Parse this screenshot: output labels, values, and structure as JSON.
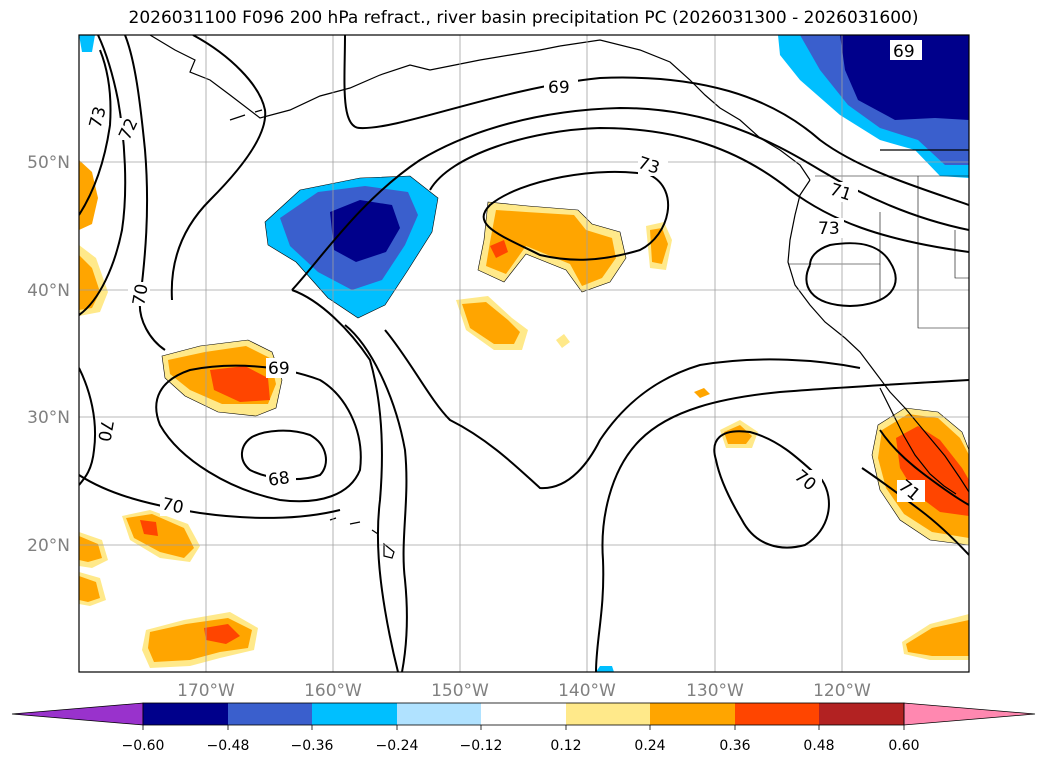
{
  "title": "2026031100 F096 200 hPa refract., river basin precipitation PC (2026031300 - 2026031600)",
  "map": {
    "lon_labels": [
      "170°W",
      "160°W",
      "150°W",
      "140°W",
      "130°W",
      "120°W"
    ],
    "lat_labels": [
      "50°N",
      "40°N",
      "30°N",
      "20°N"
    ],
    "contour_labels": [
      "69",
      "69",
      "73",
      "72",
      "70",
      "73",
      "71",
      "73",
      "69",
      "68",
      "70",
      "70",
      "70",
      "71"
    ],
    "colors": {
      "land_outline": "#000000",
      "grid": "#a0a0a0",
      "axis_label": "#808080"
    }
  },
  "colorbar": {
    "tick_labels": [
      "−0.60",
      "−0.48",
      "−0.36",
      "−0.24",
      "−0.12",
      "0.12",
      "0.24",
      "0.36",
      "0.48",
      "0.60"
    ],
    "colors": [
      "#9932cc",
      "#00008b",
      "#3a5fcd",
      "#00bfff",
      "#b0e2ff",
      "#ffffff",
      "#ffe98a",
      "#ffa500",
      "#ff4500",
      "#b22222",
      "#ff88b0"
    ]
  }
}
